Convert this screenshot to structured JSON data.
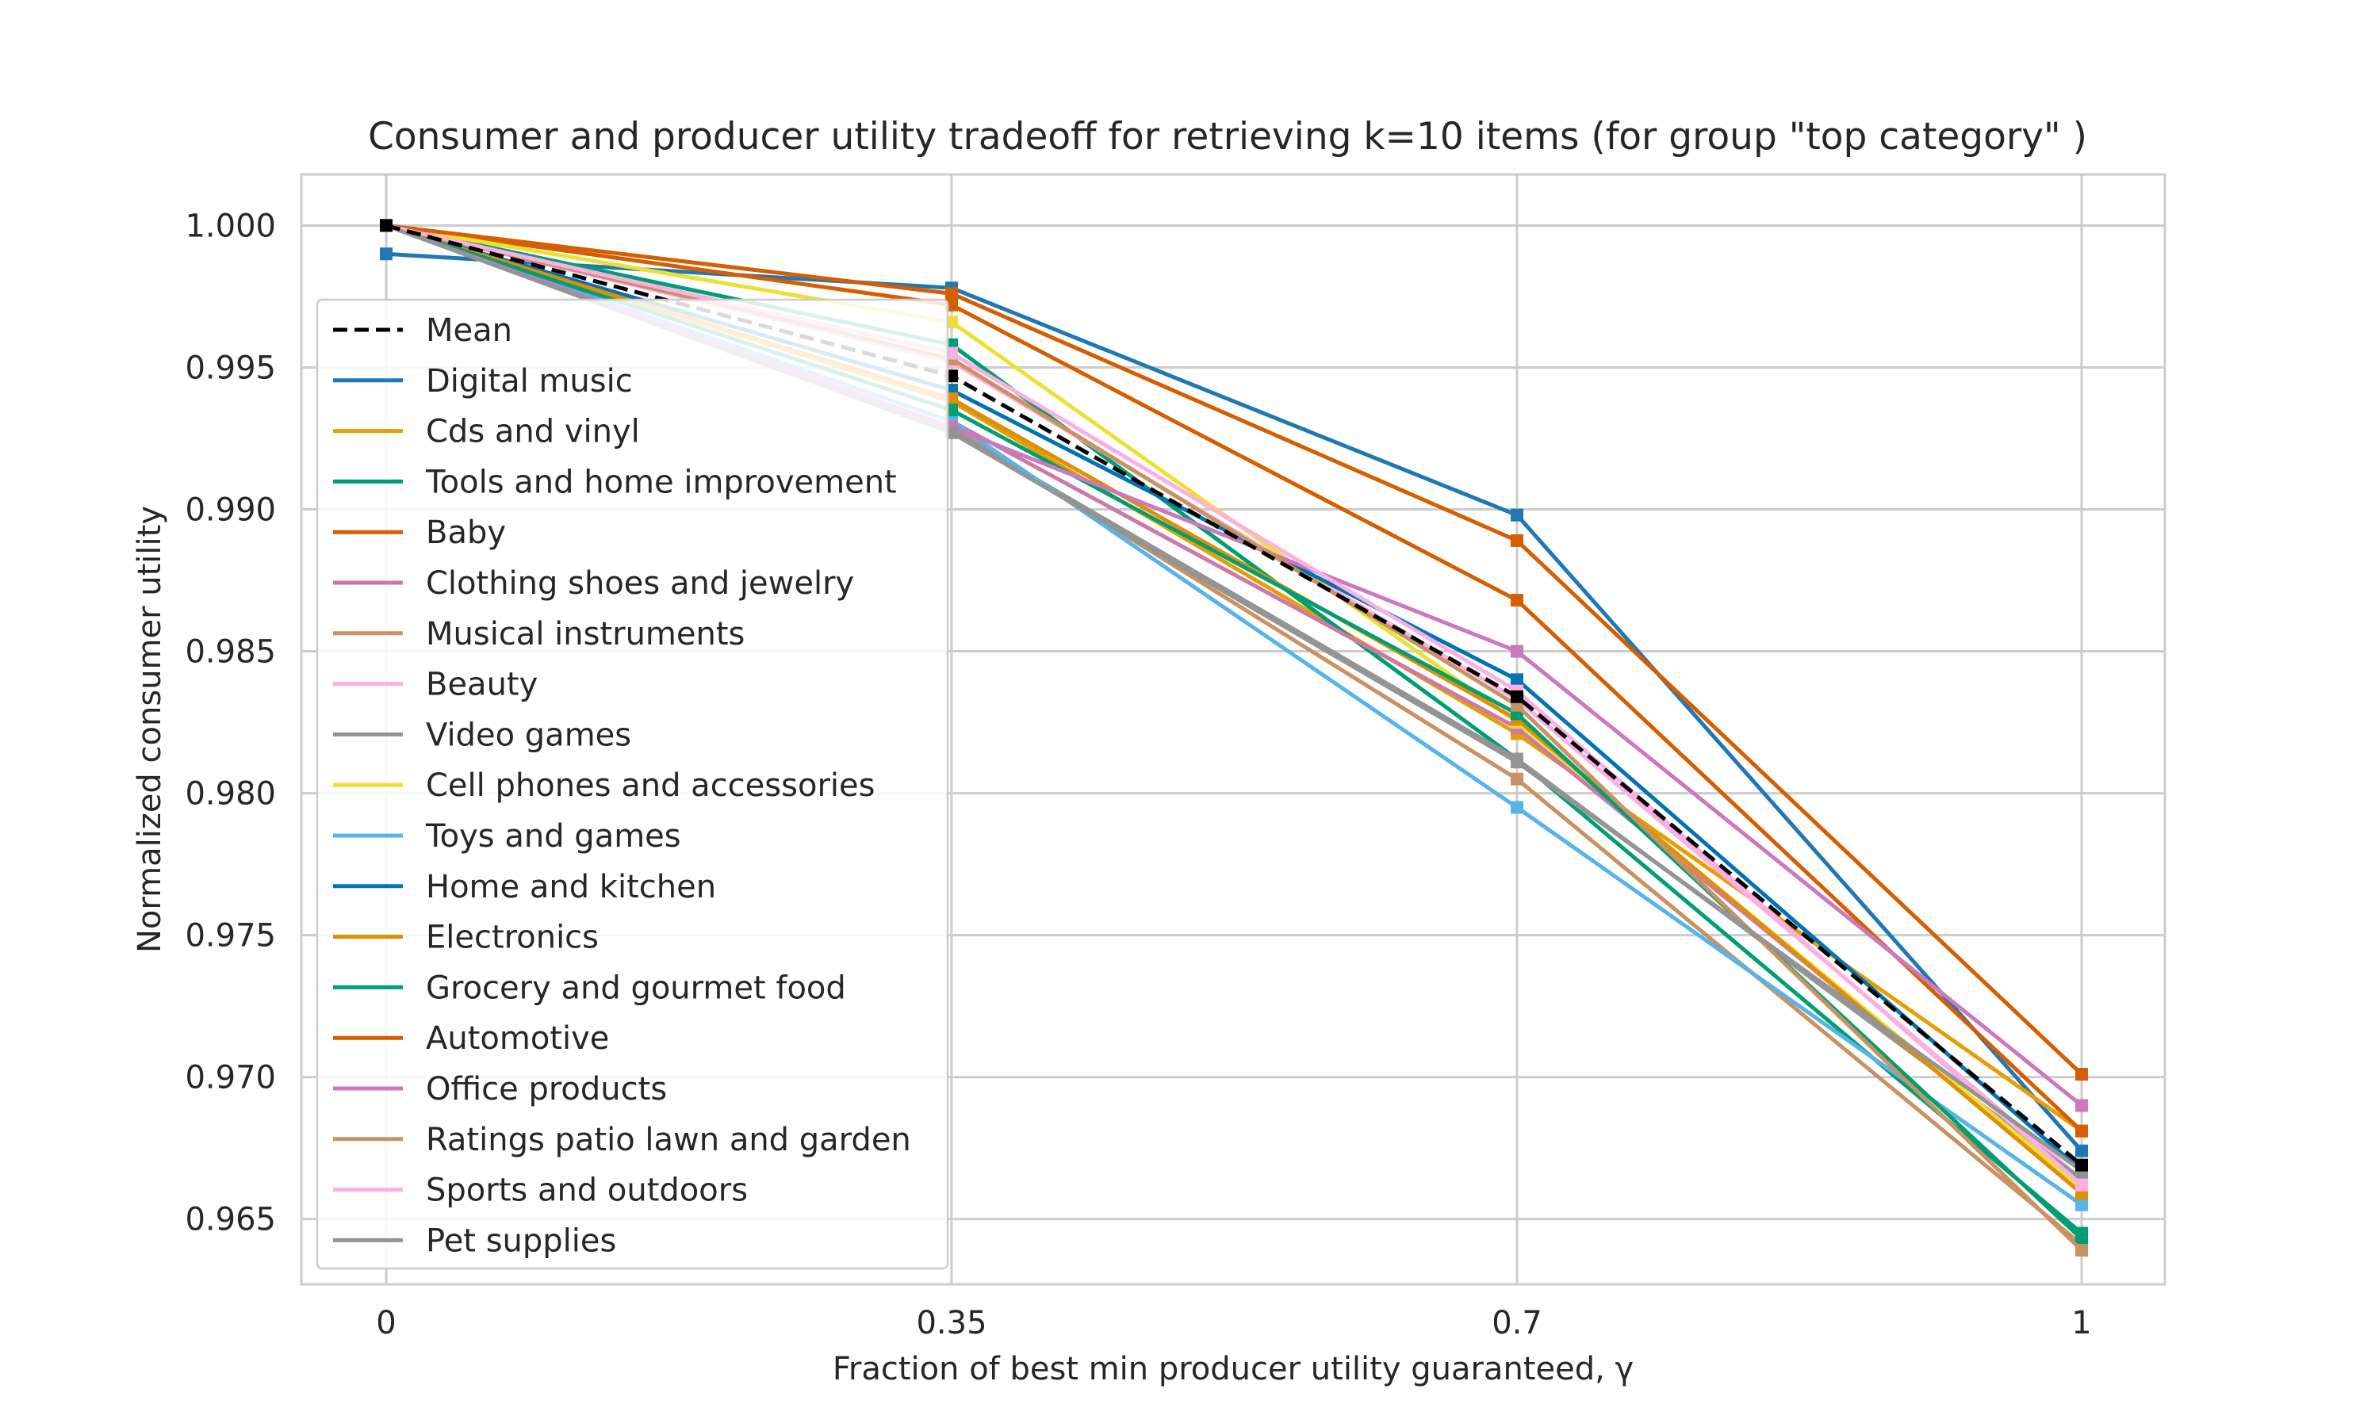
{
  "chart_data": {
    "type": "line",
    "title": "Consumer and producer utility tradeoff for retrieving k=10 items (for group \"top category\" )",
    "xlabel": "Fraction of best min producer utility guaranteed, γ",
    "ylabel": "Normalized consumer utility",
    "x": [
      0,
      0.35,
      0.7,
      1
    ],
    "x_tick_labels": [
      "0",
      "0.35",
      "0.7",
      "1"
    ],
    "y_ticks": [
      0.965,
      0.97,
      0.975,
      0.98,
      0.985,
      0.99,
      0.995,
      1.0
    ],
    "y_tick_labels": [
      "0.965",
      "0.970",
      "0.975",
      "0.980",
      "0.985",
      "0.990",
      "0.995",
      "1.000"
    ],
    "ylim": [
      0.9627,
      1.0018
    ],
    "grid": true,
    "legend_position": "left",
    "series": [
      {
        "name": "Mean",
        "color": "#000000",
        "dashed": true,
        "values": [
          1.0,
          0.9947,
          0.9834,
          0.9669
        ]
      },
      {
        "name": "Digital music",
        "color": "#1f77b4",
        "values": [
          0.999,
          0.9978,
          0.9898,
          0.9674
        ]
      },
      {
        "name": "Cds and vinyl",
        "color": "#e69f00",
        "values": [
          1.0,
          0.9938,
          0.9821,
          0.9681
        ]
      },
      {
        "name": "Tools and home improvement",
        "color": "#009e73",
        "values": [
          1.0,
          0.9958,
          0.9812,
          0.9645
        ]
      },
      {
        "name": "Baby",
        "color": "#d55e00",
        "values": [
          1.0,
          0.9972,
          0.9868,
          0.9681
        ]
      },
      {
        "name": "Clothing shoes and jewelry",
        "color": "#cc79a7",
        "values": [
          1.0,
          0.9931,
          0.9823,
          0.9661
        ]
      },
      {
        "name": "Musical instruments",
        "color": "#ca9161",
        "values": [
          1.0,
          0.9929,
          0.9805,
          0.9641
        ]
      },
      {
        "name": "Beauty",
        "color": "#fbafe4",
        "values": [
          1.0,
          0.9952,
          0.9833,
          0.9664
        ]
      },
      {
        "name": "Video games",
        "color": "#949494",
        "values": [
          1.0,
          0.9928,
          0.9812,
          0.9664
        ]
      },
      {
        "name": "Cell phones and accessories",
        "color": "#ece133",
        "values": [
          1.0,
          0.9966,
          0.9825,
          0.9661
        ]
      },
      {
        "name": "Toys and games",
        "color": "#56b4e9",
        "values": [
          1.0,
          0.9931,
          0.9795,
          0.9655
        ]
      },
      {
        "name": "Home and kitchen",
        "color": "#0173b2",
        "values": [
          1.0,
          0.9942,
          0.984,
          0.9667
        ]
      },
      {
        "name": "Electronics",
        "color": "#de8f05",
        "values": [
          1.0,
          0.9939,
          0.9826,
          0.9659
        ]
      },
      {
        "name": "Grocery and gourmet food",
        "color": "#029e73",
        "values": [
          1.0,
          0.9935,
          0.9828,
          0.9643
        ]
      },
      {
        "name": "Automotive",
        "color": "#d55e00",
        "values": [
          1.0,
          0.9976,
          0.9889,
          0.9701
        ]
      },
      {
        "name": "Office products",
        "color": "#cc78bc",
        "values": [
          1.0,
          0.9929,
          0.985,
          0.969
        ]
      },
      {
        "name": "Ratings patio lawn and garden",
        "color": "#ca9161",
        "values": [
          1.0,
          0.9953,
          0.9831,
          0.9639
        ]
      },
      {
        "name": "Sports and outdoors",
        "color": "#fbafe4",
        "values": [
          1.0,
          0.9955,
          0.9836,
          0.9662
        ]
      },
      {
        "name": "Pet supplies",
        "color": "#949494",
        "values": [
          1.0,
          0.9927,
          0.9811,
          0.9667
        ]
      }
    ]
  }
}
